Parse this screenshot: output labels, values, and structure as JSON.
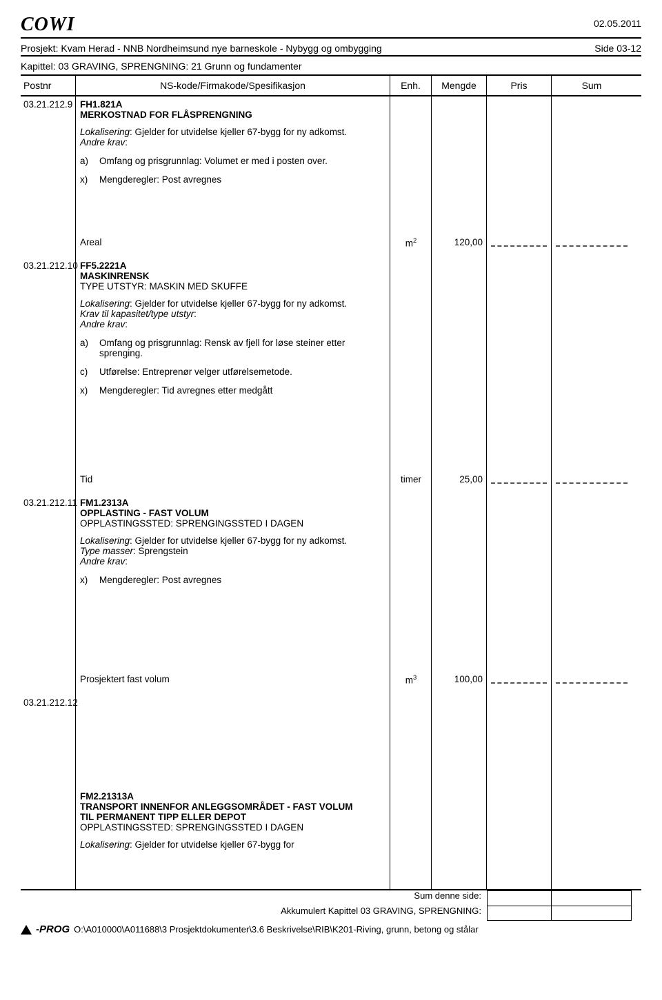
{
  "header": {
    "logo": "COWI",
    "date": "02.05.2011",
    "project_label_prefix": "Prosjekt: ",
    "project": "Kvam Herad - NNB Nordheimsund nye barneskole - Nybygg og ombygging",
    "side": "Side 03-12",
    "chapter_prefix": "Kapittel: ",
    "chapter": "03 GRAVING, SPRENGNING: 21 Grunn og fundamenter"
  },
  "columns": {
    "postnr": "Postnr",
    "spec": "NS-kode/Firmakode/Spesifikasjon",
    "enh": "Enh.",
    "mengde": "Mengde",
    "pris": "Pris",
    "sum": "Sum"
  },
  "items": [
    {
      "postnr": "03.21.212.9",
      "code": "FH1.821A",
      "title": "MERKOSTNAD FOR FLÅSPRENGNING",
      "loc_label": "Lokalisering",
      "loc_text": ": Gjelder for utvidelse kjeller 67-bygg for ny adkomst.",
      "krav_label": "Andre krav",
      "krav_colon": ":",
      "subs": [
        {
          "lab": "a)",
          "txt": "Omfang og prisgrunnlag: Volumet er med i posten over."
        },
        {
          "lab": "x)",
          "txt": "Mengderegler: Post avregnes"
        }
      ],
      "measure_label": "Areal",
      "unit_base": "m",
      "unit_sup": "2",
      "qty": "120,00"
    },
    {
      "postnr": "03.21.212.10",
      "code": "FF5.2221A",
      "title": "MASKINRENSK",
      "title2": "TYPE UTSTYR: MASKIN MED SKUFFE",
      "loc_label": "Lokalisering",
      "loc_text": ": Gjelder for utvidelse kjeller 67-bygg for ny adkomst.",
      "kap_label": "Krav til kapasitet/type utstyr",
      "kap_colon": ":",
      "krav_label": "Andre krav",
      "krav_colon": ":",
      "subs": [
        {
          "lab": "a)",
          "txt": "Omfang og prisgrunnlag: Rensk av fjell for løse steiner etter sprenging."
        },
        {
          "lab": "c)",
          "txt": "Utførelse: Entreprenør velger utførelsemetode."
        },
        {
          "lab": "x)",
          "txt": "Mengderegler: Tid avregnes etter medgått"
        }
      ],
      "measure_label": "Tid",
      "unit": "timer",
      "qty": "25,00"
    },
    {
      "postnr": "03.21.212.11",
      "code": "FM1.2313A",
      "title": "OPPLASTING - FAST VOLUM",
      "title2": "OPPLASTINGSSTED: SPRENGINGSSTED I DAGEN",
      "loc_label": "Lokalisering",
      "loc_text": ": Gjelder for utvidelse kjeller 67-bygg for ny adkomst.",
      "type_label": "Type masser",
      "type_text": ": Sprengstein",
      "krav_label": "Andre krav",
      "krav_colon": ":",
      "subs": [
        {
          "lab": "x)",
          "txt": "Mengderegler: Post avregnes"
        }
      ],
      "measure_label": "Prosjektert fast volum",
      "unit_base": "m",
      "unit_sup": "3",
      "qty": "100,00"
    },
    {
      "postnr": "03.21.212.12",
      "code": "FM2.21313A",
      "title": "TRANSPORT INNENFOR ANLEGGSOMRÅDET - FAST VOLUM",
      "title2": "TIL PERMANENT TIPP ELLER DEPOT",
      "title3": "OPPLASTINGSSTED: SPRENGINGSSTED I DAGEN",
      "loc_label": "Lokalisering",
      "loc_text": ": Gjelder for utvidelse kjeller 67-bygg for"
    }
  ],
  "layout": {
    "postnr_tops": [
      0,
      234,
      578,
      868,
      1038
    ],
    "spec_tops": [
      0,
      200,
      234,
      544,
      578,
      834,
      868,
      1004,
      1038
    ],
    "enh_tops": [
      200,
      544,
      834,
      1004
    ],
    "pris_tops": [
      200,
      544,
      834,
      1004
    ]
  },
  "footer": {
    "sum_side": "Sum denne side:",
    "akk": "Akkumulert Kapittel 03 GRAVING, SPRENGNING:",
    "prog": "-PROG",
    "path": "O:\\A010000\\A011688\\3 Prosjektdokumenter\\3.6 Beskrivelse\\RIB\\K201-Riving, grunn, betong og stålar"
  }
}
